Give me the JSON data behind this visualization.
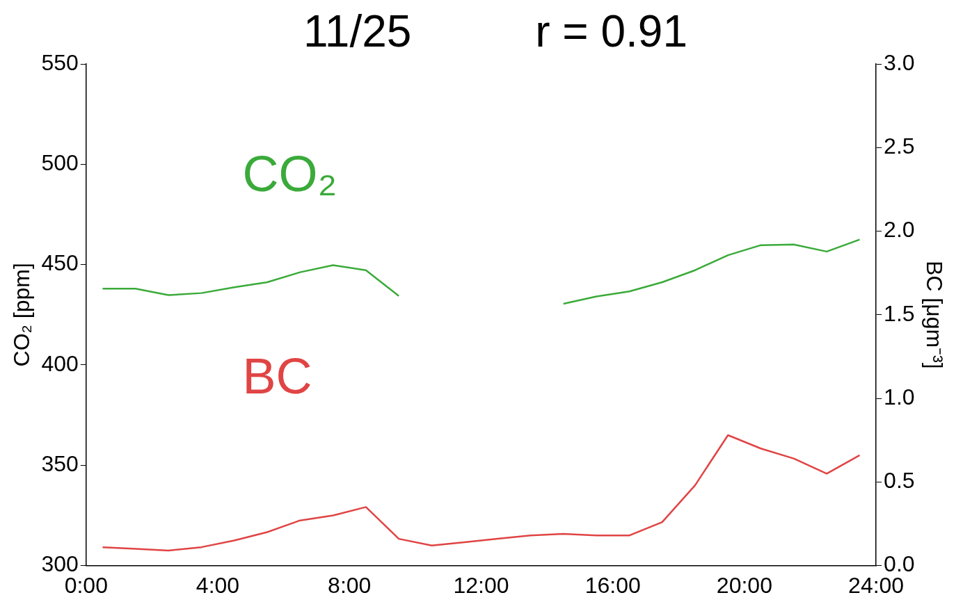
{
  "chart_data": {
    "type": "line",
    "title": "11/25          r = 0.91",
    "ylabel": "CO₂ [ppm]",
    "y2label": "BC [μgm⁻³]",
    "x": [
      0.5,
      1.5,
      2.5,
      3.5,
      4.5,
      5.5,
      6.5,
      7.5,
      8.5,
      9.5,
      10.5,
      11.5,
      12.5,
      13.5,
      14.5,
      15.5,
      16.5,
      17.5,
      18.5,
      19.5,
      20.5,
      21.5,
      22.5,
      23.5
    ],
    "series": [
      {
        "name": "CO₂",
        "color": "#3aaa3a",
        "values": [
          438,
          438,
          434.8,
          435.8,
          438.7,
          441.2,
          446.2,
          449.7,
          447.2,
          434.4,
          null,
          null,
          null,
          null,
          430.5,
          434.1,
          436.6,
          441.2,
          447.2,
          454.7,
          459.7,
          460,
          456.5,
          462.5
        ]
      },
      {
        "name": "BC",
        "color": "#e04444",
        "axis": "y2",
        "values": [
          0.11,
          0.1,
          0.09,
          0.11,
          0.15,
          0.2,
          0.27,
          0.3,
          0.35,
          0.16,
          0.12,
          0.14,
          0.16,
          0.18,
          0.19,
          0.18,
          0.18,
          0.26,
          0.48,
          0.78,
          0.7,
          0.64,
          0.55,
          0.66
        ]
      }
    ],
    "xlim": [
      0,
      24
    ],
    "xticks": [
      {
        "value": 0,
        "label": "0:00"
      },
      {
        "value": 4,
        "label": "4:00"
      },
      {
        "value": 8,
        "label": "8:00"
      },
      {
        "value": 12,
        "label": "12:00"
      },
      {
        "value": 16,
        "label": "16:00"
      },
      {
        "value": 20,
        "label": "20:00"
      },
      {
        "value": 24,
        "label": "24:00"
      }
    ],
    "ylim": [
      300,
      550
    ],
    "yticks": [
      300,
      350,
      400,
      450,
      500,
      550
    ],
    "y2lim": [
      0,
      3
    ],
    "y2ticks": [
      {
        "value": 0,
        "label": "0.0"
      },
      {
        "value": 0.5,
        "label": "0.5"
      },
      {
        "value": 1,
        "label": "1.0"
      },
      {
        "value": 1.5,
        "label": "1.5"
      },
      {
        "value": 2,
        "label": "2.0"
      },
      {
        "value": 2.5,
        "label": "2.5"
      },
      {
        "value": 3,
        "label": "3.0"
      }
    ],
    "grid": false,
    "legend": false
  }
}
